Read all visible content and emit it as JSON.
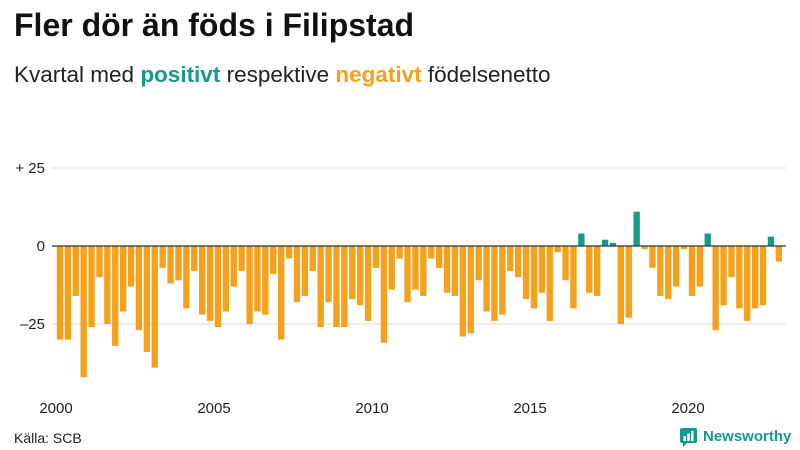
{
  "chart_data": {
    "type": "bar",
    "title": "Fler dör än föds i Filipstad",
    "subtitle": {
      "prefix": "Kvartal med ",
      "positive": "positivt",
      "middle": " respektive ",
      "negative": "negativt",
      "suffix": " födelsenetto"
    },
    "x": [
      2000,
      2000.25,
      2000.5,
      2000.75,
      2001,
      2001.25,
      2001.5,
      2001.75,
      2002,
      2002.25,
      2002.5,
      2002.75,
      2003,
      2003.25,
      2003.5,
      2003.75,
      2004,
      2004.25,
      2004.5,
      2004.75,
      2005,
      2005.25,
      2005.5,
      2005.75,
      2006,
      2006.25,
      2006.5,
      2006.75,
      2007,
      2007.25,
      2007.5,
      2007.75,
      2008,
      2008.25,
      2008.5,
      2008.75,
      2009,
      2009.25,
      2009.5,
      2009.75,
      2010,
      2010.25,
      2010.5,
      2010.75,
      2011,
      2011.25,
      2011.5,
      2011.75,
      2012,
      2012.25,
      2012.5,
      2012.75,
      2013,
      2013.25,
      2013.5,
      2013.75,
      2014,
      2014.25,
      2014.5,
      2014.75,
      2015,
      2015.25,
      2015.5,
      2015.75,
      2016,
      2016.25,
      2016.5,
      2016.75,
      2017,
      2017.25,
      2017.5,
      2017.75,
      2018,
      2018.25,
      2018.5,
      2018.75,
      2019,
      2019.25,
      2019.5,
      2019.75,
      2020,
      2020.25,
      2020.5,
      2020.75,
      2021,
      2021.25,
      2021.5,
      2021.75,
      2022,
      2022.25,
      2022.5,
      2022.75
    ],
    "values": [
      -30,
      -30,
      -16,
      -42,
      -26,
      -10,
      -25,
      -32,
      -21,
      -13,
      -27,
      -34,
      -39,
      -7,
      -12,
      -11,
      -20,
      -8,
      -22,
      -24,
      -26,
      -21,
      -13,
      -8,
      -25,
      -21,
      -22,
      -9,
      -30,
      -4,
      -18,
      -16,
      -8,
      -26,
      -18,
      -26,
      -26,
      -17,
      -19,
      -24,
      -7,
      -31,
      -14,
      -4,
      -18,
      -14,
      -16,
      -4,
      -7,
      -15,
      -16,
      -29,
      -28,
      -11,
      -21,
      -24,
      -22,
      -8,
      -10,
      -17,
      -20,
      -15,
      -24,
      -2,
      -11,
      -20,
      4,
      -15,
      -16,
      2,
      1,
      -25,
      -23,
      11,
      -1,
      -7,
      -16,
      -17,
      -13,
      -1,
      -16,
      -13,
      4,
      -27,
      -19,
      -10,
      -20,
      -24,
      -20,
      -19,
      3,
      -5
    ],
    "xticks": [
      2000,
      2005,
      2010,
      2015,
      2020
    ],
    "yticks": [
      {
        "value": 25,
        "label": "+ 25"
      },
      {
        "value": 0,
        "label": "0"
      },
      {
        "value": -25,
        "label": "–25"
      }
    ],
    "xlim": [
      2000,
      2023
    ],
    "ylim": [
      -45,
      30
    ],
    "grid": true
  },
  "colors": {
    "positive": "#17998b",
    "negative": "#f5a11c",
    "gridline": "#dcdcdc",
    "zero_line": "#333333",
    "brand": "#17998b"
  },
  "source": "Källa: SCB",
  "logo": {
    "text": "Newsworthy",
    "icon": "newsworthy-chat-chart-icon"
  }
}
